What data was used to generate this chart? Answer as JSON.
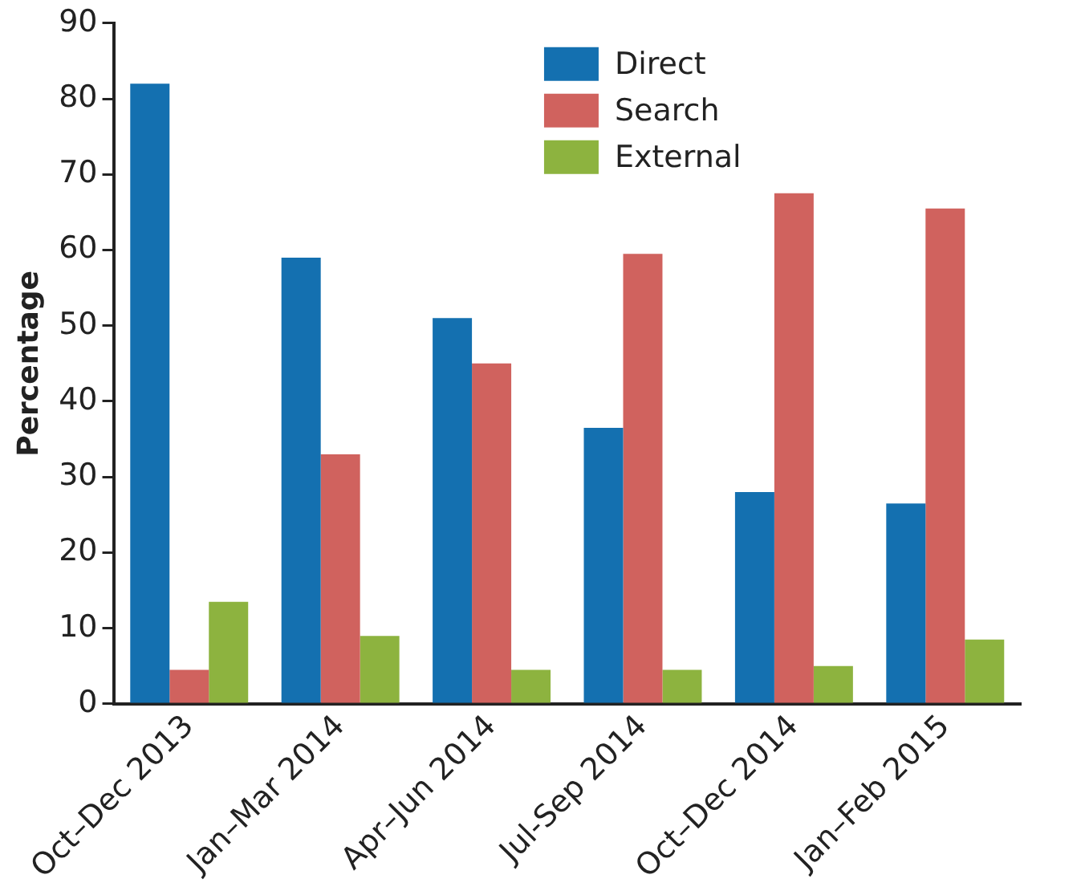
{
  "chart_data": {
    "type": "bar",
    "ylabel": "Percentage",
    "categories": [
      "Oct–Dec 2013",
      "Jan–Mar 2014",
      "Apr–Jun 2014",
      "Jul-Sep 2014",
      "Oct–Dec 2014",
      "Jan–Feb 2015"
    ],
    "series": [
      {
        "name": "Direct",
        "color": "#1470b0",
        "values": [
          82,
          59,
          51,
          36.5,
          28,
          26.5
        ]
      },
      {
        "name": "Search",
        "color": "#d0625e",
        "values": [
          4.5,
          33,
          45,
          59.5,
          67.5,
          65.5
        ]
      },
      {
        "name": "External",
        "color": "#8db33f",
        "values": [
          13.5,
          9,
          4.5,
          4.5,
          5,
          8.5
        ]
      }
    ],
    "ylim": [
      0,
      90
    ],
    "yticks": [
      0,
      10,
      20,
      30,
      40,
      50,
      60,
      70,
      80,
      90
    ],
    "grid": false,
    "legend": "top"
  }
}
